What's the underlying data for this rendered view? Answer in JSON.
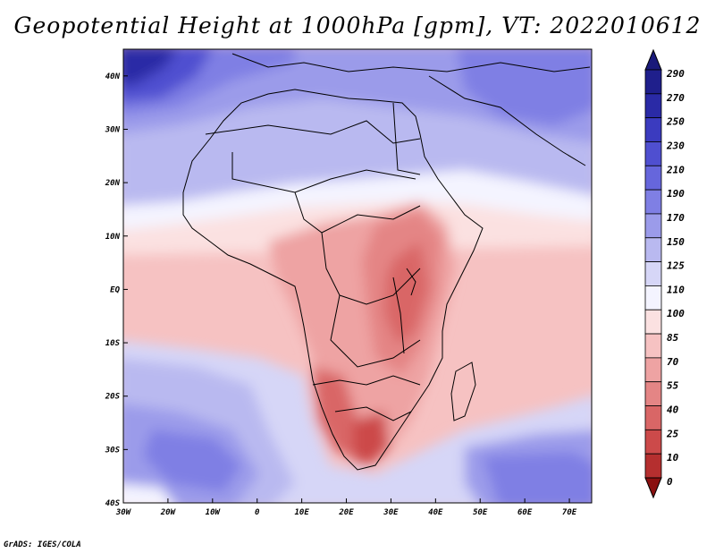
{
  "title": "Geopotential Height at 1000hPa [gpm], VT: 2022010612",
  "credit": "GrADS: IGES/COLA",
  "map": {
    "lon_labels": [
      "30W",
      "20W",
      "10W",
      "0",
      "10E",
      "20E",
      "30E",
      "40E",
      "50E",
      "60E",
      "70E"
    ],
    "lat_labels": [
      "40N",
      "30N",
      "20N",
      "10N",
      "EQ",
      "10S",
      "20S",
      "30S",
      "40S"
    ],
    "lon_range": [
      -30,
      75
    ],
    "lat_range": [
      -40,
      45
    ]
  },
  "colorbar": {
    "levels": [
      "290",
      "270",
      "250",
      "230",
      "210",
      "190",
      "170",
      "150",
      "125",
      "110",
      "100",
      "85",
      "70",
      "55",
      "40",
      "25",
      "10",
      "0"
    ],
    "colors": [
      "#1f1f8c",
      "#2a2aa6",
      "#3b3bbf",
      "#4f4fd0",
      "#6666dc",
      "#7f7fe4",
      "#9b9bea",
      "#b9b9f0",
      "#d6d6f7",
      "#f4f4ff",
      "#fbe1e1",
      "#f6c2c2",
      "#eea3a3",
      "#e48585",
      "#d96666",
      "#cc4a4a",
      "#b52f2f",
      "#991a1a"
    ],
    "top_arrow_color": "#1a1a7a",
    "bottom_arrow_color": "#8a1010"
  }
}
